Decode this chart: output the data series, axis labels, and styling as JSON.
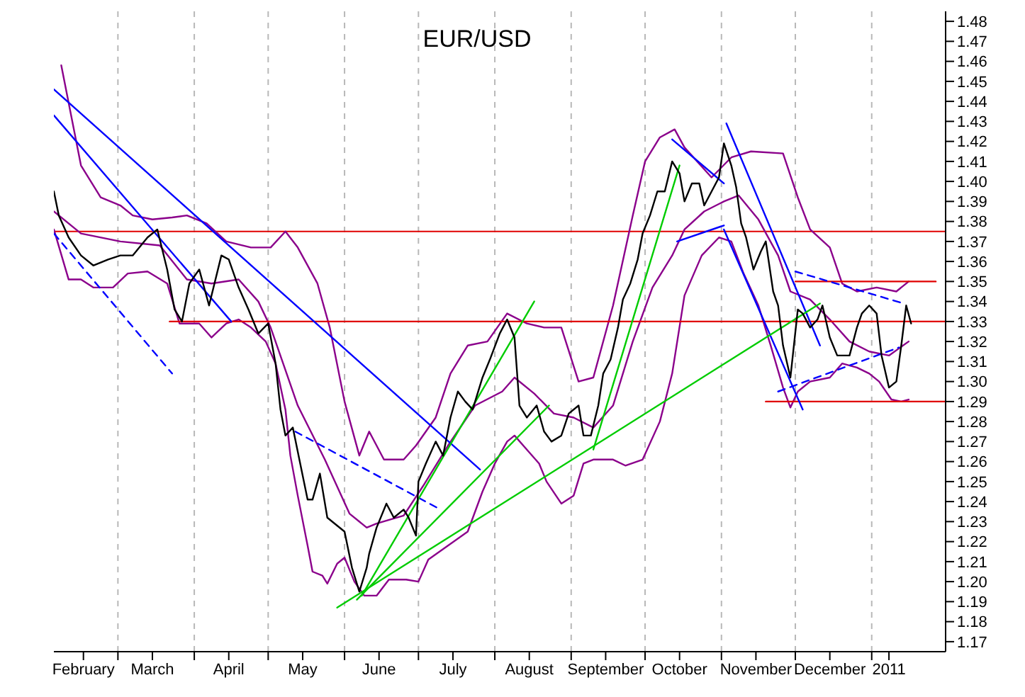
{
  "chart_data": {
    "type": "line",
    "title": "EUR/USD",
    "grid": "x",
    "xlim": [
      "2010-02-03",
      "2011-01-31"
    ],
    "xticks": [
      {
        "value": "2010-02-15",
        "label": "February"
      },
      {
        "value": "2010-03-01",
        "label": null
      },
      {
        "value": "2010-03-15",
        "label": "March"
      },
      {
        "value": "2010-04-01",
        "label": null
      },
      {
        "value": "2010-04-15",
        "label": "April"
      },
      {
        "value": "2010-05-01",
        "label": null
      },
      {
        "value": "2010-05-15",
        "label": "May"
      },
      {
        "value": "2010-06-01",
        "label": null
      },
      {
        "value": "2010-06-15",
        "label": "June"
      },
      {
        "value": "2010-07-01",
        "label": null
      },
      {
        "value": "2010-07-15",
        "label": "July"
      },
      {
        "value": "2010-08-01",
        "label": null
      },
      {
        "value": "2010-08-15",
        "label": "August"
      },
      {
        "value": "2010-09-01",
        "label": null
      },
      {
        "value": "2010-09-15",
        "label": "September"
      },
      {
        "value": "2010-10-01",
        "label": null
      },
      {
        "value": "2010-10-15",
        "label": "October"
      },
      {
        "value": "2010-11-01",
        "label": null
      },
      {
        "value": "2010-11-15",
        "label": "November"
      },
      {
        "value": "2010-12-01",
        "label": null
      },
      {
        "value": "2010-12-15",
        "label": "December"
      },
      {
        "value": "2011-01-01",
        "label": null
      },
      {
        "value": "2011-01-08",
        "label": "2011"
      }
    ],
    "ylim": [
      1.165,
      1.485
    ],
    "yticks": [
      1.17,
      1.18,
      1.19,
      {
        "value": 1.2,
        "label": "1.20"
      },
      1.21,
      1.22,
      1.23,
      1.24,
      1.25,
      1.26,
      1.27,
      1.28,
      1.29,
      {
        "value": 1.3,
        "label": "1.30"
      },
      1.31,
      1.32,
      1.33,
      1.34,
      1.35,
      1.36,
      1.37,
      1.38,
      1.39,
      {
        "value": 1.4,
        "label": "1.40"
      },
      1.41,
      1.42,
      1.43,
      1.44,
      1.45,
      1.46,
      1.47,
      1.48
    ],
    "ref_lines": [
      {
        "axis": "y",
        "value": 1.375,
        "color": "#e00000"
      }
    ],
    "series": [
      {
        "type": "line",
        "color": "#8b008b",
        "x": [
          "2010-02-06",
          "2010-02-14",
          "2010-02-22",
          "2010-03-02",
          "2010-03-07",
          "2010-03-15",
          "2010-03-23",
          "2010-03-29",
          "2010-04-06",
          "2010-04-14",
          "2010-04-24",
          "2010-05-02",
          "2010-05-08",
          "2010-05-13",
          "2010-05-21",
          "2010-05-26",
          "2010-06-01",
          "2010-06-07",
          "2010-06-11",
          "2010-06-17",
          "2010-06-25",
          "2010-06-30",
          "2010-07-08",
          "2010-07-14",
          "2010-07-21",
          "2010-07-29",
          "2010-08-06",
          "2010-08-14",
          "2010-08-21",
          "2010-08-28",
          "2010-09-04",
          "2010-09-10",
          "2010-09-18",
          "2010-09-26",
          "2010-10-01",
          "2010-10-07",
          "2010-10-13",
          "2010-10-17",
          "2010-10-28",
          "2010-11-05",
          "2010-11-13",
          "2010-11-26",
          "2010-12-02",
          "2010-12-07",
          "2010-12-15",
          "2010-12-20",
          "2010-12-26",
          "2011-01-03",
          "2011-01-11",
          "2011-01-16"
        ],
        "values": [
          1.458,
          1.408,
          1.392,
          1.388,
          1.383,
          1.381,
          1.382,
          1.383,
          1.379,
          1.37,
          1.367,
          1.367,
          1.375,
          1.367,
          1.349,
          1.327,
          1.29,
          1.263,
          1.275,
          1.261,
          1.261,
          1.268,
          1.282,
          1.304,
          1.318,
          1.32,
          1.334,
          1.329,
          1.327,
          1.327,
          1.3,
          1.302,
          1.338,
          1.383,
          1.41,
          1.422,
          1.426,
          1.417,
          1.402,
          1.412,
          1.415,
          1.414,
          1.392,
          1.376,
          1.367,
          1.349,
          1.345,
          1.347,
          1.345,
          1.35
        ]
      },
      {
        "type": "line",
        "color": "#8b008b",
        "x": [
          "2010-02-03",
          "2010-02-14",
          "2010-03-02",
          "2010-03-18",
          "2010-03-29",
          "2010-04-08",
          "2010-04-19",
          "2010-04-27",
          "2010-05-02",
          "2010-05-13",
          "2010-05-24",
          "2010-06-03",
          "2010-06-10",
          "2010-06-14",
          "2010-06-25",
          "2010-07-03",
          "2010-07-13",
          "2010-07-24",
          "2010-08-04",
          "2010-08-09",
          "2010-08-17",
          "2010-08-25",
          "2010-09-02",
          "2010-09-10",
          "2010-09-18",
          "2010-09-26",
          "2010-10-04",
          "2010-10-12",
          "2010-10-17",
          "2010-10-25",
          "2010-11-02",
          "2010-11-08",
          "2010-11-16",
          "2010-11-24",
          "2010-11-29",
          "2010-12-07",
          "2010-12-15",
          "2010-12-23",
          "2010-12-31",
          "2011-01-08",
          "2011-01-16"
        ],
        "values": [
          1.385,
          1.374,
          1.37,
          1.368,
          1.351,
          1.349,
          1.351,
          1.34,
          1.327,
          1.288,
          1.261,
          1.234,
          1.227,
          1.229,
          1.233,
          1.248,
          1.268,
          1.288,
          1.295,
          1.302,
          1.294,
          1.284,
          1.282,
          1.277,
          1.288,
          1.32,
          1.347,
          1.363,
          1.376,
          1.385,
          1.39,
          1.393,
          1.381,
          1.363,
          1.345,
          1.341,
          1.331,
          1.32,
          1.315,
          1.313,
          1.32
        ]
      },
      {
        "type": "line",
        "color": "#8b008b",
        "x": [
          "2010-02-03",
          "2010-02-09",
          "2010-02-14",
          "2010-02-19",
          "2010-02-27",
          "2010-03-05",
          "2010-03-13",
          "2010-03-21",
          "2010-03-26",
          "2010-04-03",
          "2010-04-08",
          "2010-04-14",
          "2010-04-19",
          "2010-04-24",
          "2010-04-30",
          "2010-05-04",
          "2010-05-08",
          "2010-05-10",
          "2010-05-13",
          "2010-05-17",
          "2010-05-19",
          "2010-05-23",
          "2010-05-25",
          "2010-05-29",
          "2010-06-01",
          "2010-06-05",
          "2010-06-09",
          "2010-06-14",
          "2010-06-19",
          "2010-06-26",
          "2010-07-01",
          "2010-07-05",
          "2010-07-13",
          "2010-07-21",
          "2010-07-27",
          "2010-08-01",
          "2010-08-06",
          "2010-08-09",
          "2010-08-14",
          "2010-08-19",
          "2010-08-22",
          "2010-08-28",
          "2010-09-02",
          "2010-09-06",
          "2010-09-10",
          "2010-09-18",
          "2010-09-23",
          "2010-09-30",
          "2010-10-07",
          "2010-10-12",
          "2010-10-17",
          "2010-10-24",
          "2010-10-31",
          "2010-11-05",
          "2010-11-10",
          "2010-11-16",
          "2010-11-21",
          "2010-11-26",
          "2010-11-29",
          "2010-12-02",
          "2010-12-07",
          "2010-12-15",
          "2010-12-20",
          "2010-12-26",
          "2010-12-31",
          "2011-01-04",
          "2011-01-09",
          "2011-01-13",
          "2011-01-16"
        ],
        "values": [
          1.376,
          1.351,
          1.351,
          1.347,
          1.347,
          1.354,
          1.355,
          1.349,
          1.329,
          1.329,
          1.322,
          1.329,
          1.331,
          1.327,
          1.32,
          1.309,
          1.286,
          1.263,
          1.243,
          1.218,
          1.205,
          1.203,
          1.199,
          1.209,
          1.212,
          1.2,
          1.193,
          1.193,
          1.201,
          1.201,
          1.2,
          1.211,
          1.218,
          1.225,
          1.245,
          1.259,
          1.27,
          1.273,
          1.266,
          1.259,
          1.25,
          1.239,
          1.243,
          1.259,
          1.261,
          1.261,
          1.258,
          1.261,
          1.28,
          1.304,
          1.343,
          1.363,
          1.372,
          1.37,
          1.354,
          1.338,
          1.318,
          1.297,
          1.287,
          1.295,
          1.3,
          1.302,
          1.309,
          1.307,
          1.304,
          1.3,
          1.291,
          1.29,
          1.291
        ]
      },
      {
        "type": "line",
        "color": "#e00000",
        "x": [
          "2010-03-22",
          "2011-01-31"
        ],
        "values": [
          1.33,
          1.33
        ]
      },
      {
        "type": "line",
        "color": "#e00000",
        "x": [
          "2010-12-01",
          "2011-01-27"
        ],
        "values": [
          1.35,
          1.35
        ]
      },
      {
        "type": "line",
        "color": "#e00000",
        "x": [
          "2010-11-19",
          "2011-01-31"
        ],
        "values": [
          1.29,
          1.29
        ]
      },
      {
        "type": "line",
        "color": "#0000ff",
        "x": [
          "2010-02-03",
          "2010-04-16"
        ],
        "values": [
          1.433,
          1.33
        ]
      },
      {
        "type": "line",
        "color": "#0000ff",
        "x": [
          "2010-02-03",
          "2010-07-26"
        ],
        "values": [
          1.446,
          1.256
        ]
      },
      {
        "type": "line",
        "color": "#0000ff",
        "line_style": "dashed",
        "x": [
          "2010-02-03",
          "2010-03-23"
        ],
        "values": [
          1.374,
          1.304
        ]
      },
      {
        "type": "line",
        "color": "#0000ff",
        "line_style": "dashed",
        "x": [
          "2010-05-12",
          "2010-07-10"
        ],
        "values": [
          1.275,
          1.236
        ]
      },
      {
        "type": "line",
        "color": "#0000ff",
        "x": [
          "2010-10-12",
          "2010-11-02"
        ],
        "values": [
          1.421,
          1.399
        ]
      },
      {
        "type": "line",
        "color": "#0000ff",
        "x": [
          "2010-10-14",
          "2010-11-02"
        ],
        "values": [
          1.37,
          1.378
        ]
      },
      {
        "type": "line",
        "color": "#0000ff",
        "x": [
          "2010-11-03",
          "2010-12-11"
        ],
        "values": [
          1.429,
          1.318
        ]
      },
      {
        "type": "line",
        "color": "#0000ff",
        "x": [
          "2010-11-02",
          "2010-12-04"
        ],
        "values": [
          1.376,
          1.286
        ]
      },
      {
        "type": "line",
        "color": "#0000ff",
        "line_style": "dashed",
        "x": [
          "2010-12-01",
          "2011-01-14"
        ],
        "values": [
          1.355,
          1.339
        ]
      },
      {
        "type": "line",
        "color": "#0000ff",
        "line_style": "dashed",
        "x": [
          "2010-11-24",
          "2011-01-12"
        ],
        "values": [
          1.295,
          1.317
        ]
      },
      {
        "type": "line",
        "color": "#00cc00",
        "x": [
          "2010-05-29",
          "2010-12-11"
        ],
        "values": [
          1.187,
          1.339
        ]
      },
      {
        "type": "line",
        "color": "#00cc00",
        "x": [
          "2010-06-06",
          "2010-08-23"
        ],
        "values": [
          1.191,
          1.288
        ]
      },
      {
        "type": "line",
        "color": "#00cc00",
        "x": [
          "2010-06-08",
          "2010-08-17"
        ],
        "values": [
          1.193,
          1.34
        ]
      },
      {
        "type": "line",
        "color": "#00cc00",
        "x": [
          "2010-09-10",
          "2010-10-15"
        ],
        "values": [
          1.266,
          1.408
        ]
      },
      {
        "type": "line",
        "color": "#000000",
        "x": [
          "2010-02-03",
          "2010-02-05",
          "2010-02-09",
          "2010-02-14",
          "2010-02-19",
          "2010-02-25",
          "2010-03-02",
          "2010-03-07",
          "2010-03-13",
          "2010-03-17",
          "2010-03-21",
          "2010-03-24",
          "2010-03-27",
          "2010-03-30",
          "2010-04-03",
          "2010-04-07",
          "2010-04-12",
          "2010-04-15",
          "2010-04-19",
          "2010-04-23",
          "2010-04-27",
          "2010-05-01",
          "2010-05-04",
          "2010-05-06",
          "2010-05-08",
          "2010-05-11",
          "2010-05-14",
          "2010-05-17",
          "2010-05-19",
          "2010-05-22",
          "2010-05-25",
          "2010-05-28",
          "2010-06-01",
          "2010-06-04",
          "2010-06-07",
          "2010-06-10",
          "2010-06-11",
          "2010-06-14",
          "2010-06-18",
          "2010-06-21",
          "2010-06-25",
          "2010-06-27",
          "2010-06-30",
          "2010-07-01",
          "2010-07-04",
          "2010-07-08",
          "2010-07-11",
          "2010-07-14",
          "2010-07-17",
          "2010-07-20",
          "2010-07-23",
          "2010-07-27",
          "2010-07-30",
          "2010-08-03",
          "2010-08-06",
          "2010-08-09",
          "2010-08-11",
          "2010-08-14",
          "2010-08-18",
          "2010-08-21",
          "2010-08-24",
          "2010-08-28",
          "2010-08-31",
          "2010-09-04",
          "2010-09-06",
          "2010-09-09",
          "2010-09-12",
          "2010-09-14",
          "2010-09-17",
          "2010-09-20",
          "2010-09-22",
          "2010-09-25",
          "2010-09-28",
          "2010-09-30",
          "2010-10-03",
          "2010-10-06",
          "2010-10-09",
          "2010-10-12",
          "2010-10-15",
          "2010-10-17",
          "2010-10-20",
          "2010-10-23",
          "2010-10-25",
          "2010-10-28",
          "2010-10-31",
          "2010-11-02",
          "2010-11-05",
          "2010-11-07",
          "2010-11-09",
          "2010-11-11",
          "2010-11-14",
          "2010-11-17",
          "2010-11-19",
          "2010-11-22",
          "2010-11-24",
          "2010-11-26",
          "2010-11-29",
          "2010-12-02",
          "2010-12-04",
          "2010-12-07",
          "2010-12-10",
          "2010-12-12",
          "2010-12-15",
          "2010-12-18",
          "2010-12-20",
          "2010-12-23",
          "2010-12-26",
          "2010-12-28",
          "2010-12-31",
          "2011-01-03",
          "2011-01-05",
          "2011-01-08",
          "2011-01-11",
          "2011-01-13",
          "2011-01-15",
          "2011-01-17"
        ],
        "values": [
          1.395,
          1.383,
          1.372,
          1.363,
          1.358,
          1.361,
          1.363,
          1.363,
          1.372,
          1.376,
          1.356,
          1.336,
          1.33,
          1.349,
          1.356,
          1.338,
          1.363,
          1.361,
          1.347,
          1.336,
          1.324,
          1.329,
          1.309,
          1.286,
          1.273,
          1.277,
          1.259,
          1.241,
          1.241,
          1.254,
          1.232,
          1.229,
          1.225,
          1.207,
          1.195,
          1.207,
          1.214,
          1.227,
          1.239,
          1.232,
          1.236,
          1.232,
          1.223,
          1.25,
          1.259,
          1.27,
          1.263,
          1.282,
          1.295,
          1.29,
          1.286,
          1.302,
          1.311,
          1.324,
          1.331,
          1.322,
          1.288,
          1.282,
          1.288,
          1.275,
          1.27,
          1.273,
          1.284,
          1.288,
          1.273,
          1.273,
          1.288,
          1.304,
          1.311,
          1.327,
          1.341,
          1.349,
          1.361,
          1.374,
          1.383,
          1.395,
          1.395,
          1.41,
          1.404,
          1.39,
          1.399,
          1.399,
          1.388,
          1.395,
          1.402,
          1.419,
          1.408,
          1.397,
          1.379,
          1.372,
          1.356,
          1.365,
          1.37,
          1.345,
          1.338,
          1.318,
          1.302,
          1.336,
          1.334,
          1.327,
          1.331,
          1.338,
          1.322,
          1.313,
          1.313,
          1.313,
          1.327,
          1.334,
          1.338,
          1.334,
          1.313,
          1.297,
          1.3,
          1.318,
          1.338,
          1.329
        ]
      }
    ]
  }
}
